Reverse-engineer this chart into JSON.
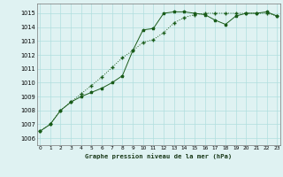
{
  "title": "Graphe pression niveau de la mer (hPa)",
  "background_color": "#dff2f2",
  "grid_color": "#b0dede",
  "line_color": "#1a5c1a",
  "x_ticks": [
    0,
    1,
    2,
    3,
    4,
    5,
    6,
    7,
    8,
    9,
    10,
    11,
    12,
    13,
    14,
    15,
    16,
    17,
    18,
    19,
    20,
    21,
    22,
    23
  ],
  "y_ticks": [
    1006,
    1007,
    1008,
    1009,
    1010,
    1011,
    1012,
    1013,
    1014,
    1015
  ],
  "ylim": [
    1005.5,
    1015.7
  ],
  "xlim": [
    -0.3,
    23.3
  ],
  "line1_x": [
    0,
    1,
    2,
    3,
    4,
    5,
    6,
    7,
    8,
    9,
    10,
    11,
    12,
    13,
    14,
    15,
    16,
    17,
    18,
    19,
    20,
    21,
    22,
    23
  ],
  "line1_y": [
    1006.5,
    1007.0,
    1008.0,
    1008.6,
    1009.0,
    1009.3,
    1009.6,
    1010.0,
    1010.5,
    1012.3,
    1013.8,
    1013.9,
    1015.0,
    1015.1,
    1015.1,
    1015.0,
    1014.9,
    1014.5,
    1014.2,
    1014.8,
    1015.0,
    1015.0,
    1015.1,
    1014.8
  ],
  "line2_x": [
    0,
    1,
    2,
    3,
    4,
    5,
    6,
    7,
    8,
    9,
    10,
    11,
    12,
    13,
    14,
    15,
    16,
    17,
    18,
    19,
    20,
    21,
    22,
    23
  ],
  "line2_y": [
    1006.5,
    1007.0,
    1008.0,
    1008.6,
    1009.2,
    1009.8,
    1010.4,
    1011.1,
    1011.8,
    1012.3,
    1012.9,
    1013.1,
    1013.6,
    1014.3,
    1014.7,
    1014.9,
    1015.0,
    1015.0,
    1015.0,
    1015.0,
    1015.0,
    1015.0,
    1015.0,
    1014.8
  ]
}
